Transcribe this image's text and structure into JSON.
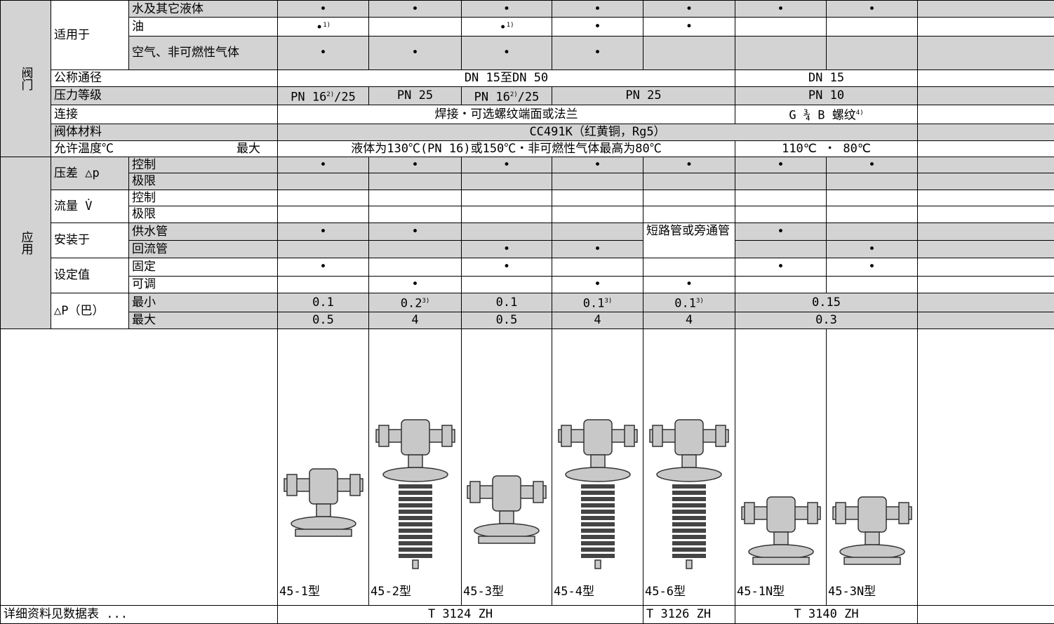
{
  "sections": [
    "阀门",
    "应用"
  ],
  "table": {
    "rows": [
      [
        "适用于",
        "水及其它液体",
        "•",
        "•",
        "•",
        "•",
        "•",
        "•",
        "•"
      ],
      [
        "油",
        {
          "text": "•",
          "note": "1)"
        },
        {
          "text": "•",
          "note": "1)"
        },
        "•",
        "•"
      ],
      [
        "空气、非可燃性气体",
        "•",
        "•",
        "•",
        "•"
      ],
      [
        "公称通径",
        "DN 15至DN 50",
        "DN 15"
      ],
      [
        "压力等级",
        {
          "text": "PN 16",
          "note": "2)",
          "suffix": "/25"
        },
        "PN 25",
        {
          "text": "PN 16",
          "note": "2)",
          "suffix": "/25"
        },
        "PN 25",
        "PN 10"
      ],
      [
        "连接",
        "焊接・可选螺纹端面或法兰",
        {
          "text": "G ¾ B 螺纹",
          "note": "4)"
        }
      ],
      [
        "阀体材料",
        "CC491K（红黄铜，Rg5）"
      ],
      [
        "允许温度℃",
        "最大",
        "液体为130℃(PN 16)或150℃・非可燃性气体最高为80℃",
        "110℃ ・ 80℃"
      ],
      [
        "压差 △p",
        "控制",
        "•",
        "•",
        "•",
        "•",
        "•",
        "•",
        "•"
      ],
      [
        "极限"
      ],
      [
        "流量 V̇",
        "控制"
      ],
      [
        "极限"
      ],
      [
        "安装于",
        "供水管",
        "•",
        "•",
        "短路管或旁通管",
        "•"
      ],
      [
        "回流管",
        "•",
        "•",
        "•"
      ],
      [
        "设定值",
        "固定",
        "•",
        "•",
        "•",
        "•"
      ],
      [
        "可调",
        "•",
        "•",
        "•"
      ],
      [
        "△P（巴）",
        "最小",
        "0.1",
        {
          "text": "0.2",
          "note": "3)"
        },
        "0.1",
        {
          "text": "0.1",
          "note": "3)"
        },
        {
          "text": "0.1",
          "note": "3)"
        },
        "0.15"
      ],
      [
        "最大",
        "0.5",
        "4",
        "0.5",
        "4",
        "4",
        "0.3"
      ],
      [
        "45-1型",
        "45-2型",
        "45-3型",
        "45-4型",
        "45-6型",
        "45-1N型",
        "45-3N型"
      ],
      [
        "详细资料见数据表 ...",
        "T 3124 ZH",
        "T 3126 ZH",
        "T 3140 ZH"
      ]
    ]
  }
}
